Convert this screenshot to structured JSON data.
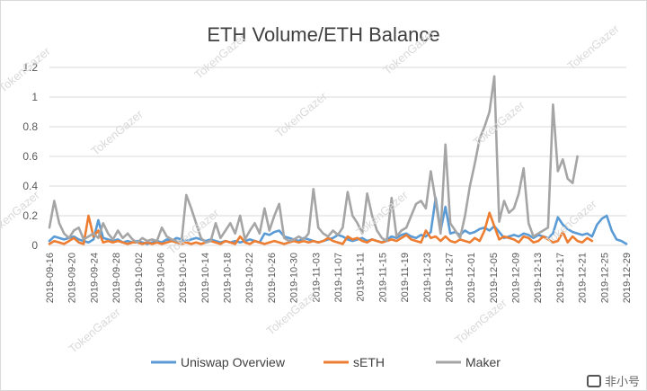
{
  "watermark": "TokenGazer",
  "logo_text": "非小号",
  "chart_data": {
    "type": "line",
    "title": "ETH Volume/ETH Balance",
    "xlabel": "",
    "ylabel": "",
    "ylim": [
      0,
      1.2
    ],
    "yticks": [
      "0",
      "0.2",
      "0.4",
      "0.6",
      "0.8",
      "1",
      "1.2"
    ],
    "ytick_values": [
      0,
      0.2,
      0.4,
      0.6,
      0.8,
      1.0,
      1.2
    ],
    "xtick_labels": [
      "2019-09-16",
      "2019-09-20",
      "2019-09-24",
      "2019-09-28",
      "2019-10-02",
      "2019-10-06",
      "2019-10-10",
      "2019-10-14",
      "2019-10-18",
      "2019-10-22",
      "2019-10-26",
      "2019-10-30",
      "2019-11-03",
      "2019-11-07",
      "2019-11-11",
      "2019-11-15",
      "2019-11-19",
      "2019-11-23",
      "2019-11-27",
      "2019-12-01",
      "2019-12-05",
      "2019-12-09",
      "2019-12-13",
      "2019-12-17",
      "2019-12-21",
      "2019-12-25",
      "2019-12-29"
    ],
    "grid": true,
    "legend_position": "bottom",
    "series": [
      {
        "name": "Uniswap Overview",
        "color": "#5b9bd5",
        "values": [
          0.03,
          0.06,
          0.05,
          0.04,
          0.05,
          0.06,
          0.04,
          0.03,
          0.02,
          0.04,
          0.17,
          0.05,
          0.04,
          0.03,
          0.04,
          0.02,
          0.03,
          0.02,
          0.03,
          0.02,
          0.01,
          0.02,
          0.03,
          0.02,
          0.04,
          0.03,
          0.05,
          0.04,
          0.03,
          0.04,
          0.05,
          0.04,
          0.03,
          0.04,
          0.03,
          0.02,
          0.03,
          0.02,
          0.03,
          0.02,
          0.03,
          0.04,
          0.03,
          0.02,
          0.08,
          0.07,
          0.09,
          0.1,
          0.06,
          0.05,
          0.04,
          0.03,
          0.05,
          0.04,
          0.03,
          0.02,
          0.03,
          0.04,
          0.05,
          0.07,
          0.06,
          0.04,
          0.03,
          0.04,
          0.05,
          0.03,
          0.04,
          0.03,
          0.02,
          0.04,
          0.06,
          0.05,
          0.07,
          0.08,
          0.06,
          0.05,
          0.07,
          0.06,
          0.09,
          0.32,
          0.1,
          0.26,
          0.08,
          0.09,
          0.07,
          0.1,
          0.08,
          0.09,
          0.11,
          0.12,
          0.1,
          0.13,
          0.09,
          0.05,
          0.06,
          0.07,
          0.06,
          0.08,
          0.07,
          0.05,
          0.07,
          0.06,
          0.05,
          0.08,
          0.19,
          0.14,
          0.11,
          0.09,
          0.08,
          0.07,
          0.08,
          0.06,
          0.14,
          0.18,
          0.2,
          0.1,
          0.04,
          0.03,
          0.01
        ]
      },
      {
        "name": "sETH",
        "color": "#ed7d31",
        "values": [
          0.01,
          0.03,
          0.02,
          0.01,
          0.03,
          0.05,
          0.02,
          0.01,
          0.2,
          0.06,
          0.1,
          0.02,
          0.03,
          0.02,
          0.03,
          0.02,
          0.01,
          0.02,
          0.02,
          0.01,
          0.02,
          0.01,
          0.02,
          0.01,
          0.02,
          0.03,
          0.02,
          0.01,
          0.02,
          0.01,
          0.02,
          0.01,
          0.02,
          0.03,
          0.02,
          0.01,
          0.03,
          0.02,
          0.01,
          0.06,
          0.02,
          0.01,
          0.03,
          0.02,
          0.01,
          0.02,
          0.03,
          0.02,
          0.01,
          0.02,
          0.03,
          0.02,
          0.03,
          0.02,
          0.03,
          0.02,
          0.03,
          0.05,
          0.03,
          0.02,
          0.01,
          0.06,
          0.04,
          0.05,
          0.03,
          0.02,
          0.04,
          0.03,
          0.02,
          0.03,
          0.04,
          0.03,
          0.05,
          0.07,
          0.04,
          0.03,
          0.02,
          0.1,
          0.05,
          0.06,
          0.03,
          0.06,
          0.03,
          0.02,
          0.04,
          0.03,
          0.02,
          0.05,
          0.03,
          0.1,
          0.22,
          0.13,
          0.04,
          0.06,
          0.05,
          0.04,
          0.02,
          0.06,
          0.05,
          0.02,
          0.03,
          0.06,
          0.04,
          0.02,
          0.03,
          0.09,
          0.02,
          0.06,
          0.03,
          0.02,
          0.05,
          0.03
        ]
      },
      {
        "name": "Maker",
        "color": "#a5a5a5",
        "values": [
          0.12,
          0.3,
          0.15,
          0.08,
          0.05,
          0.1,
          0.12,
          0.04,
          0.06,
          0.08,
          0.05,
          0.15,
          0.08,
          0.04,
          0.1,
          0.05,
          0.08,
          0.04,
          0.02,
          0.05,
          0.03,
          0.04,
          0.03,
          0.12,
          0.06,
          0.04,
          0.03,
          0.02,
          0.34,
          0.25,
          0.15,
          0.05,
          0.02,
          0.03,
          0.15,
          0.05,
          0.1,
          0.15,
          0.08,
          0.2,
          0.04,
          0.1,
          0.15,
          0.08,
          0.25,
          0.1,
          0.2,
          0.28,
          0.05,
          0.03,
          0.04,
          0.06,
          0.04,
          0.08,
          0.38,
          0.12,
          0.08,
          0.06,
          0.1,
          0.07,
          0.12,
          0.36,
          0.2,
          0.15,
          0.08,
          0.35,
          0.2,
          0.1,
          0.05,
          0.03,
          0.32,
          0.06,
          0.1,
          0.12,
          0.2,
          0.28,
          0.3,
          0.25,
          0.5,
          0.3,
          0.08,
          0.68,
          0.15,
          0.1,
          0.05,
          0.2,
          0.4,
          0.55,
          0.72,
          0.8,
          0.9,
          1.14,
          0.16,
          0.3,
          0.22,
          0.25,
          0.35,
          0.52,
          0.15,
          0.06,
          0.08,
          0.1,
          0.12,
          0.95,
          0.5,
          0.58,
          0.45,
          0.42,
          0.6
        ]
      }
    ]
  }
}
